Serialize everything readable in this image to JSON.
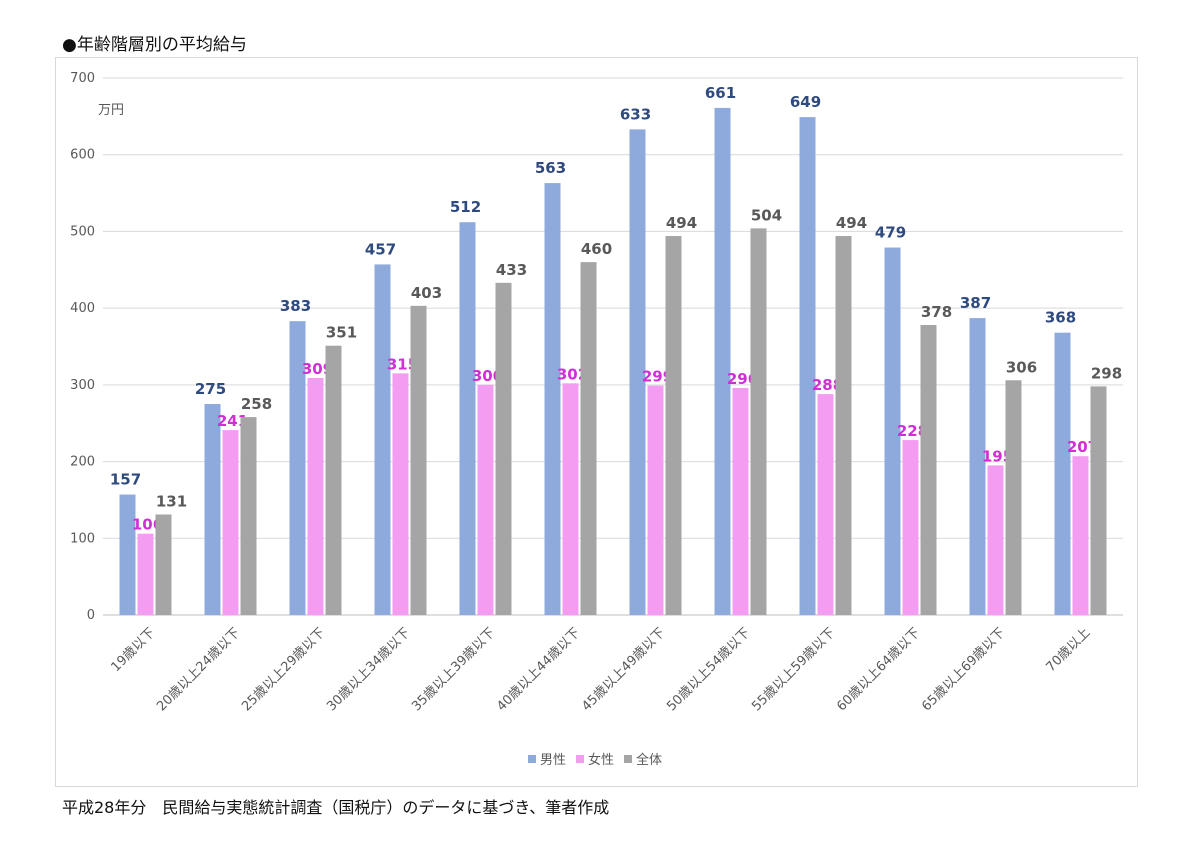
{
  "title": "●年齢階層別の平均給与",
  "source": "平成28年分　民間給与実態統計調査（国税庁）のデータに基づき、筆者作成",
  "chart_data": {
    "type": "bar",
    "unit": "万円",
    "ylim": [
      0,
      700
    ],
    "yticks": [
      0,
      100,
      200,
      300,
      400,
      500,
      600,
      700
    ],
    "grid": true,
    "legend_position": "bottom",
    "categories": [
      "19歳以下",
      "20歳以上24歳以下",
      "25歳以上29歳以下",
      "30歳以上34歳以下",
      "35歳以上39歳以下",
      "40歳以上44歳以下",
      "45歳以上49歳以下",
      "50歳以上54歳以下",
      "55歳以上59歳以下",
      "60歳以上64歳以下",
      "65歳以上69歳以下",
      "70歳以上"
    ],
    "series": [
      {
        "name": "男性",
        "color": "#8EA9DB",
        "label_color": "#2F4A7F",
        "values": [
          157,
          275,
          383,
          457,
          512,
          563,
          633,
          661,
          649,
          479,
          387,
          368
        ]
      },
      {
        "name": "女性",
        "color": "#F49CF2",
        "label_color": "#D12FD6",
        "values": [
          106,
          241,
          309,
          315,
          300,
          302,
          299,
          296,
          288,
          228,
          195,
          207
        ]
      },
      {
        "name": "全体",
        "color": "#A5A5A5",
        "label_color": "#595959",
        "values": [
          131,
          258,
          351,
          403,
          433,
          460,
          494,
          504,
          494,
          378,
          306,
          298
        ]
      }
    ]
  }
}
